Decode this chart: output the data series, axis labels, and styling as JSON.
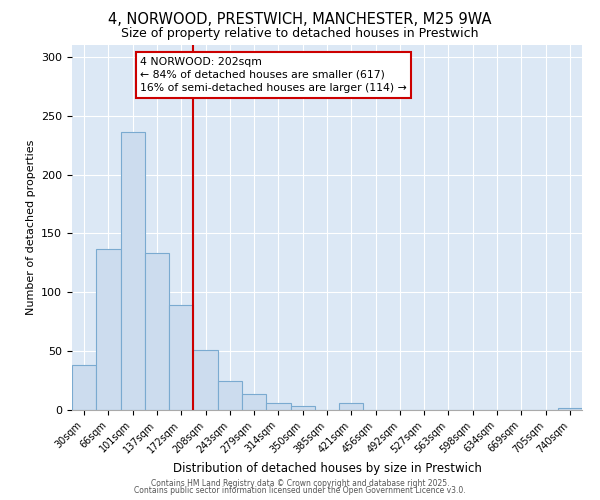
{
  "title_line1": "4, NORWOOD, PRESTWICH, MANCHESTER, M25 9WA",
  "title_line2": "Size of property relative to detached houses in Prestwich",
  "xlabel": "Distribution of detached houses by size in Prestwich",
  "ylabel": "Number of detached properties",
  "categories": [
    "30sqm",
    "66sqm",
    "101sqm",
    "137sqm",
    "172sqm",
    "208sqm",
    "243sqm",
    "279sqm",
    "314sqm",
    "350sqm",
    "385sqm",
    "421sqm",
    "456sqm",
    "492sqm",
    "527sqm",
    "563sqm",
    "598sqm",
    "634sqm",
    "669sqm",
    "705sqm",
    "740sqm"
  ],
  "values": [
    38,
    137,
    236,
    133,
    89,
    51,
    25,
    14,
    6,
    3,
    0,
    6,
    0,
    0,
    0,
    0,
    0,
    0,
    0,
    0,
    2
  ],
  "bar_color": "#ccdcee",
  "bar_edge_color": "#7aaad0",
  "vline_color": "#cc0000",
  "vline_index": 4.5,
  "annotation_text_line1": "4 NORWOOD: 202sqm",
  "annotation_text_line2": "← 84% of detached houses are smaller (617)",
  "annotation_text_line3": "16% of semi-detached houses are larger (114) →",
  "annotation_box_color": "white",
  "annotation_box_edge_color": "#cc0000",
  "ylim": [
    0,
    310
  ],
  "yticks": [
    0,
    50,
    100,
    150,
    200,
    250,
    300
  ],
  "background_color": "#dce8f5",
  "grid_color": "#ffffff",
  "footer_line1": "Contains HM Land Registry data © Crown copyright and database right 2025.",
  "footer_line2": "Contains public sector information licensed under the Open Government Licence v3.0."
}
